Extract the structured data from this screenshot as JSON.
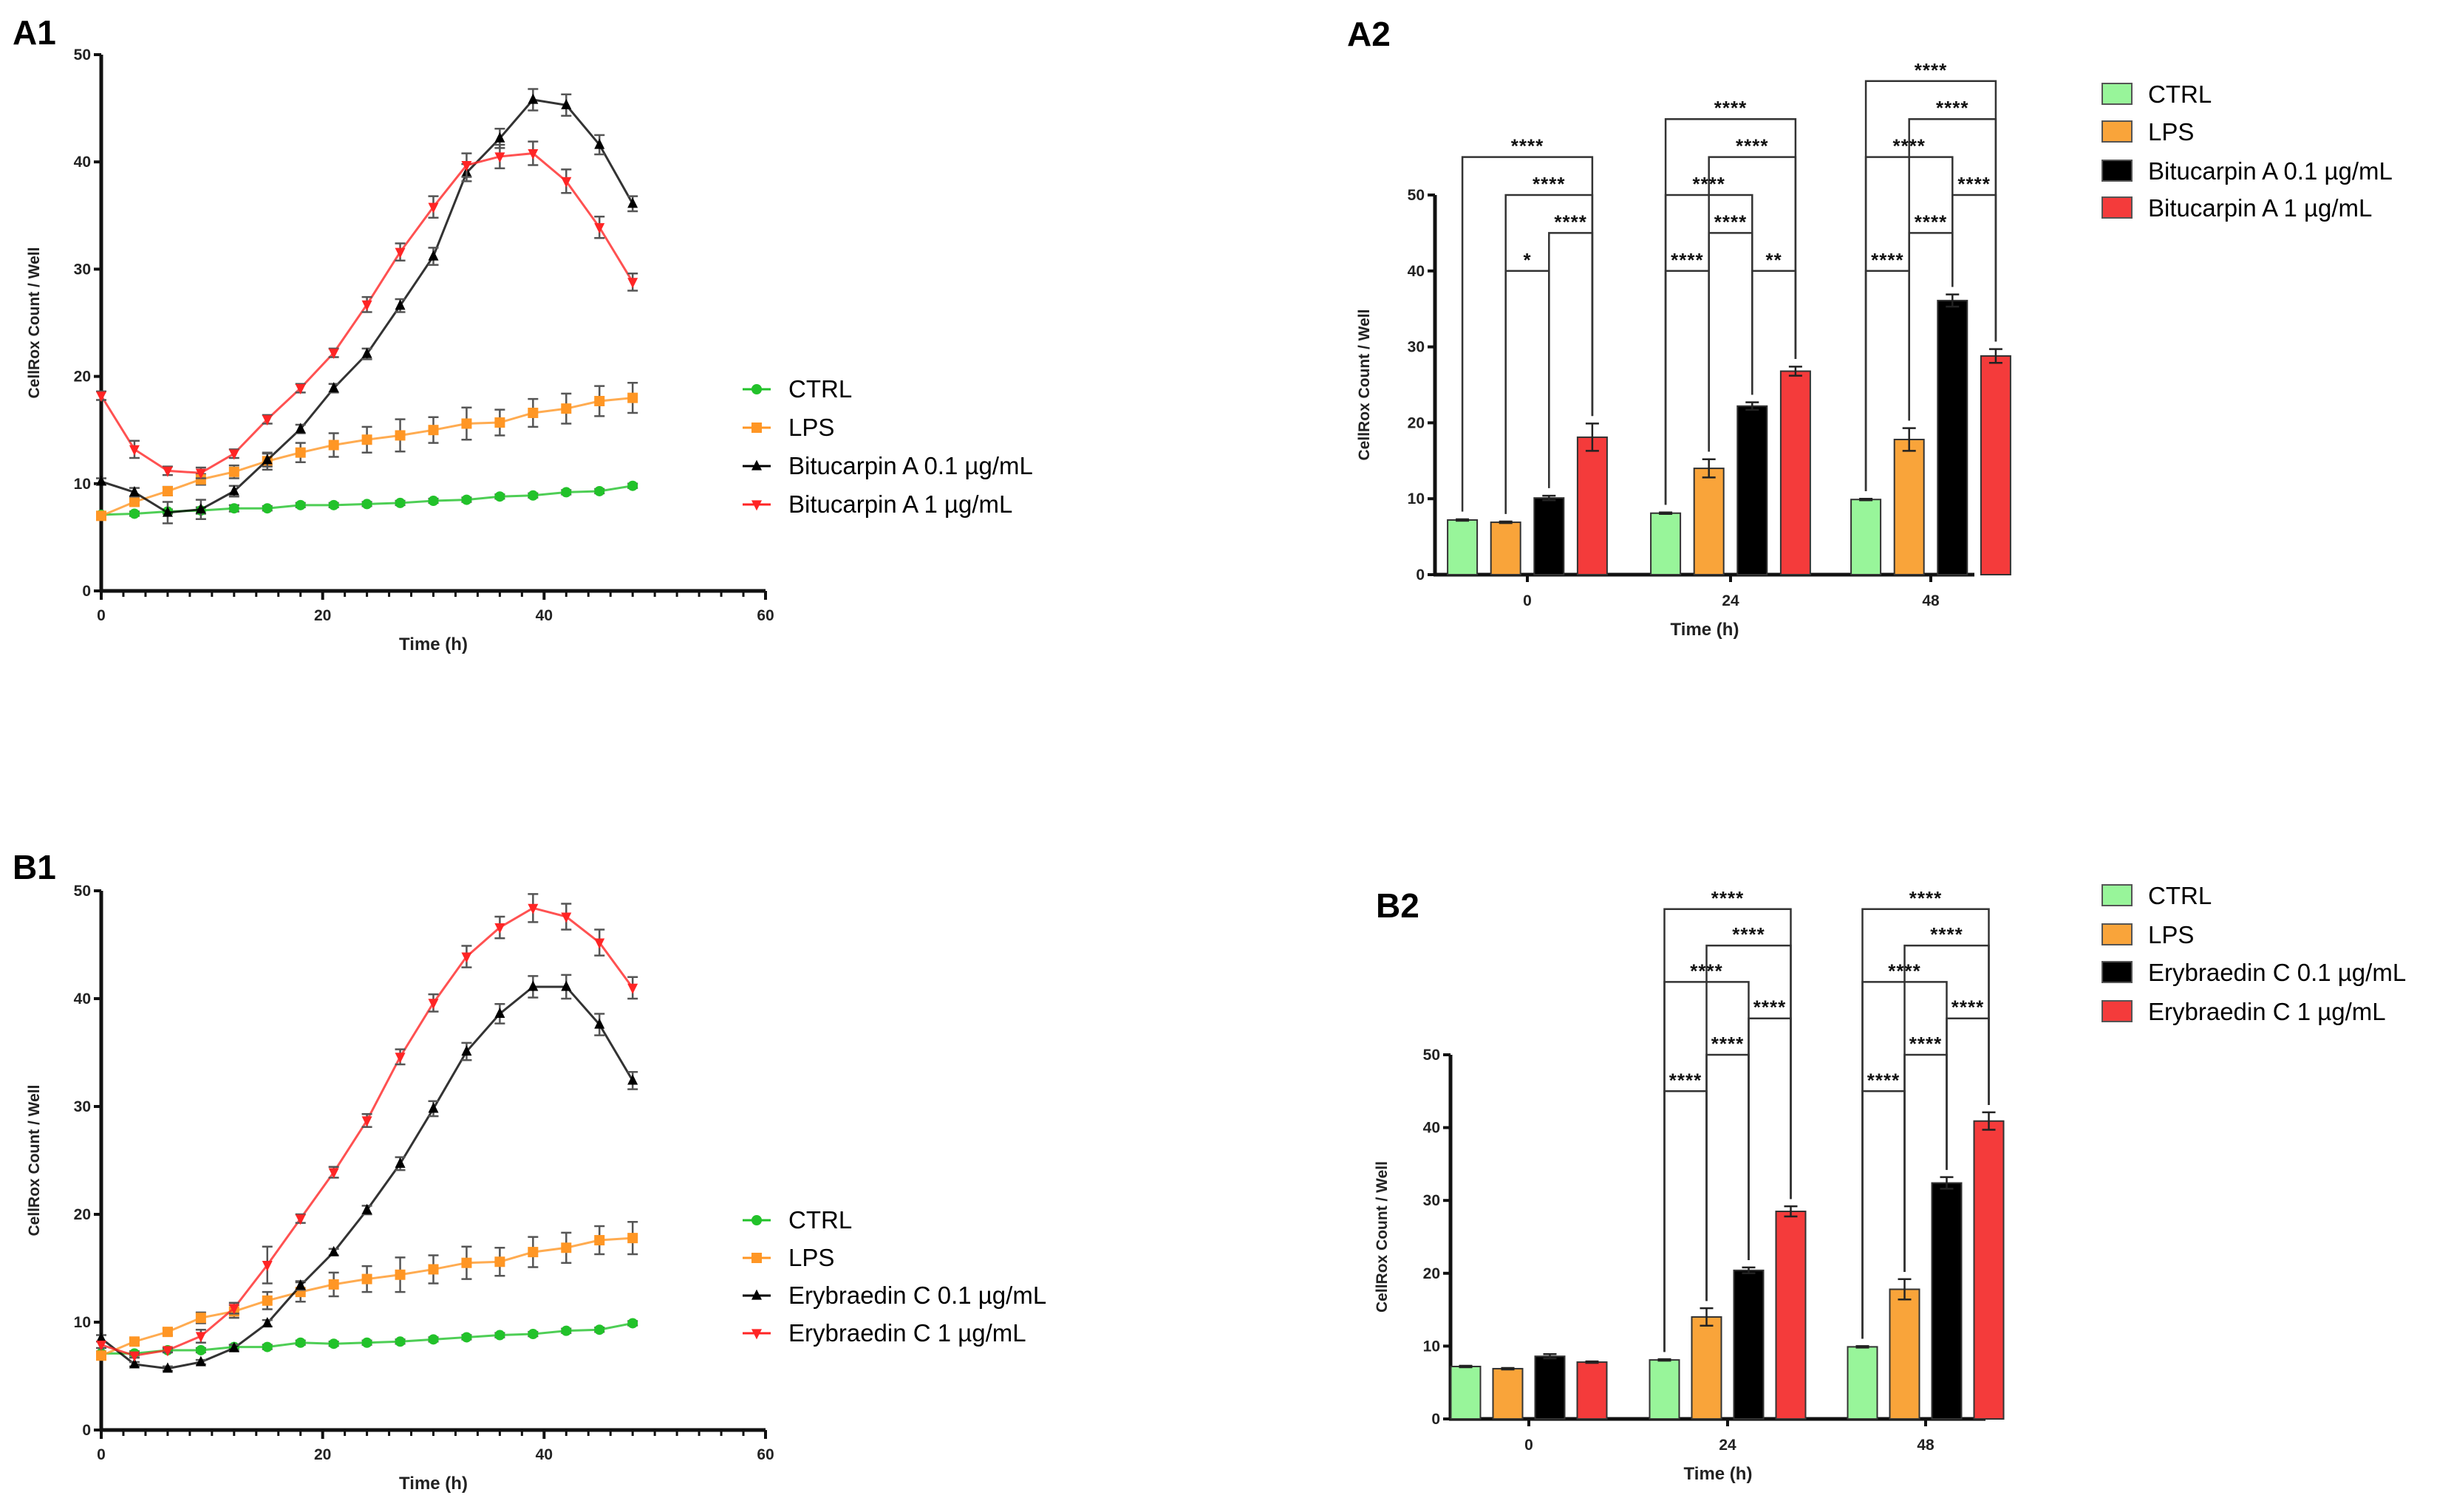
{
  "chart_data": [
    {
      "panel": "A1",
      "type": "line",
      "xlabel": "Time (h)",
      "ylabel": "CellRox Count / Well",
      "xlim": [
        0,
        60
      ],
      "ylim": [
        0,
        50
      ],
      "xticks": [
        0,
        20,
        40,
        60
      ],
      "yticks": [
        0,
        10,
        20,
        30,
        40,
        50
      ],
      "legend_position": "right",
      "x": [
        0,
        3,
        6,
        9,
        12,
        15,
        18,
        21,
        24,
        27,
        30,
        33,
        36,
        39,
        42,
        45,
        48
      ],
      "series": [
        {
          "name": "CTRL",
          "color": "#22c22a",
          "marker": "circle",
          "values": [
            7.1,
            7.2,
            7.4,
            7.5,
            7.7,
            7.7,
            8.0,
            8.0,
            8.1,
            8.2,
            8.4,
            8.5,
            8.8,
            8.9,
            9.2,
            9.3,
            9.8
          ],
          "errors": [
            0.2,
            0.2,
            0.2,
            0.3,
            0.3,
            0.2,
            0.2,
            0.2,
            0.2,
            0.2,
            0.2,
            0.2,
            0.2,
            0.2,
            0.2,
            0.2,
            0.2
          ]
        },
        {
          "name": "LPS",
          "color": "#ff9624",
          "marker": "square",
          "values": [
            7.0,
            8.3,
            9.3,
            10.4,
            11.1,
            12.1,
            12.9,
            13.6,
            14.1,
            14.5,
            15.0,
            15.6,
            15.7,
            16.6,
            17.0,
            17.7,
            18.0
          ],
          "errors": [
            0.2,
            0.3,
            0.4,
            0.5,
            0.6,
            0.8,
            0.9,
            1.1,
            1.2,
            1.5,
            1.2,
            1.5,
            1.2,
            1.3,
            1.4,
            1.4,
            1.4
          ]
        },
        {
          "name": "Bitucarpin A 0.1 µg/mL",
          "color": "#000000",
          "marker": "triangle-up",
          "values": [
            10.2,
            9.2,
            7.3,
            7.6,
            9.3,
            12.2,
            15.1,
            18.9,
            22.1,
            26.6,
            31.2,
            39.0,
            42.2,
            45.8,
            45.3,
            41.6,
            36.1
          ],
          "errors": [
            0.3,
            0.4,
            1.0,
            0.9,
            0.5,
            0.6,
            0.4,
            0.4,
            0.5,
            0.6,
            0.8,
            0.8,
            0.9,
            1.0,
            1.0,
            0.9,
            0.7
          ]
        },
        {
          "name": "Bitucarpin A 1 µg/mL",
          "color": "#ff2525",
          "marker": "triangle-down",
          "values": [
            18.2,
            13.2,
            11.2,
            11.0,
            12.8,
            16.0,
            18.9,
            22.2,
            26.7,
            31.6,
            35.8,
            39.7,
            40.5,
            40.8,
            38.2,
            33.9,
            28.8
          ],
          "errors": [
            0.4,
            0.8,
            0.4,
            0.5,
            0.4,
            0.4,
            0.4,
            0.4,
            0.7,
            0.8,
            1.0,
            1.1,
            1.1,
            1.1,
            1.1,
            1.0,
            0.8
          ]
        }
      ]
    },
    {
      "panel": "A2",
      "type": "bar",
      "xlabel": "Time (h)",
      "ylabel": "CellRox Count / Well",
      "ylim": [
        0,
        50
      ],
      "yticks": [
        0,
        10,
        20,
        30,
        40,
        50
      ],
      "legend_position": "top-right",
      "categories": [
        "0",
        "24",
        "48"
      ],
      "series": [
        {
          "name": "CTRL",
          "color": "#98f59a",
          "values": [
            7.2,
            8.1,
            9.9
          ],
          "errors": [
            0.1,
            0.1,
            0.1
          ]
        },
        {
          "name": "LPS",
          "color": "#f9a43a",
          "values": [
            6.9,
            14.0,
            17.8
          ],
          "errors": [
            0.1,
            1.2,
            1.5
          ]
        },
        {
          "name": "Bitucarpin A 0.1 µg/mL",
          "color": "#000000",
          "values": [
            10.1,
            22.2,
            36.1
          ],
          "errors": [
            0.3,
            0.5,
            0.8
          ]
        },
        {
          "name": "Bitucarpin A 1 µg/mL",
          "color": "#f43b3b",
          "values": [
            18.1,
            26.8,
            28.8
          ],
          "errors": [
            1.8,
            0.6,
            0.9
          ]
        }
      ],
      "significance": [
        {
          "group": 0,
          "from": 0,
          "to": 3,
          "level": 55,
          "label": "****"
        },
        {
          "group": 0,
          "from": 1,
          "to": 3,
          "level": 50,
          "label": "****"
        },
        {
          "group": 0,
          "from": 2,
          "to": 3,
          "level": 45,
          "label": "****"
        },
        {
          "group": 0,
          "from": 1,
          "to": 2,
          "level": 40,
          "label": "*"
        },
        {
          "group": 1,
          "from": 0,
          "to": 3,
          "level": 60,
          "label": "****"
        },
        {
          "group": 1,
          "from": 1,
          "to": 3,
          "level": 55,
          "label": "****"
        },
        {
          "group": 1,
          "from": 0,
          "to": 2,
          "level": 50,
          "label": "****"
        },
        {
          "group": 1,
          "from": 1,
          "to": 2,
          "level": 45,
          "label": "****"
        },
        {
          "group": 1,
          "from": 0,
          "to": 1,
          "level": 40,
          "label": "****"
        },
        {
          "group": 1,
          "from": 2,
          "to": 3,
          "level": 40,
          "label": "**"
        },
        {
          "group": 2,
          "from": 0,
          "to": 3,
          "level": 65,
          "label": "****"
        },
        {
          "group": 2,
          "from": 1,
          "to": 3,
          "level": 60,
          "label": "****"
        },
        {
          "group": 2,
          "from": 0,
          "to": 2,
          "level": 55,
          "label": "****"
        },
        {
          "group": 2,
          "from": 2,
          "to": 3,
          "level": 50,
          "label": "****"
        },
        {
          "group": 2,
          "from": 1,
          "to": 2,
          "level": 45,
          "label": "****"
        },
        {
          "group": 2,
          "from": 0,
          "to": 1,
          "level": 40,
          "label": "****"
        }
      ]
    },
    {
      "panel": "B1",
      "type": "line",
      "xlabel": "Time (h)",
      "ylabel": "CellRox Count / Well",
      "xlim": [
        0,
        60
      ],
      "ylim": [
        0,
        50
      ],
      "xticks": [
        0,
        20,
        40,
        60
      ],
      "yticks": [
        0,
        10,
        20,
        30,
        40,
        50
      ],
      "legend_position": "right",
      "x": [
        0,
        3,
        6,
        9,
        12,
        15,
        18,
        21,
        24,
        27,
        30,
        33,
        36,
        39,
        42,
        45,
        48
      ],
      "series": [
        {
          "name": "CTRL",
          "color": "#22c22a",
          "marker": "circle",
          "values": [
            7.1,
            7.1,
            7.4,
            7.4,
            7.7,
            7.7,
            8.1,
            8.0,
            8.1,
            8.2,
            8.4,
            8.6,
            8.8,
            8.9,
            9.2,
            9.3,
            9.9
          ],
          "errors": [
            0.2,
            0.2,
            0.2,
            0.2,
            0.2,
            0.2,
            0.2,
            0.2,
            0.2,
            0.2,
            0.2,
            0.2,
            0.2,
            0.2,
            0.2,
            0.2,
            0.2
          ]
        },
        {
          "name": "LPS",
          "color": "#ff9624",
          "marker": "square",
          "values": [
            6.9,
            8.2,
            9.1,
            10.4,
            11.0,
            12.0,
            12.8,
            13.5,
            14.0,
            14.4,
            14.9,
            15.5,
            15.6,
            16.5,
            16.9,
            17.6,
            17.8
          ],
          "errors": [
            0.2,
            0.3,
            0.3,
            0.5,
            0.6,
            0.8,
            0.9,
            1.1,
            1.2,
            1.6,
            1.3,
            1.5,
            1.3,
            1.4,
            1.4,
            1.3,
            1.5
          ]
        },
        {
          "name": "Erybraedin C 0.1 µg/mL",
          "color": "#000000",
          "marker": "triangle-up",
          "values": [
            8.5,
            6.1,
            5.7,
            6.3,
            7.6,
            9.9,
            13.4,
            16.5,
            20.4,
            24.7,
            29.8,
            35.1,
            38.6,
            41.1,
            41.1,
            37.6,
            32.4
          ],
          "errors": [
            0.3,
            0.2,
            0.2,
            0.2,
            0.3,
            0.3,
            0.4,
            0.3,
            0.4,
            0.6,
            0.7,
            0.8,
            0.9,
            1.0,
            1.1,
            1.0,
            0.8
          ]
        },
        {
          "name": "Erybraedin C 1 µg/mL",
          "color": "#ff2525",
          "marker": "triangle-down",
          "values": [
            7.9,
            6.9,
            7.4,
            8.7,
            11.3,
            15.3,
            19.6,
            23.9,
            28.7,
            34.6,
            39.6,
            43.9,
            46.6,
            48.4,
            47.6,
            45.2,
            41.0
          ],
          "errors": [
            0.3,
            0.2,
            0.2,
            0.6,
            0.5,
            1.7,
            0.4,
            0.5,
            0.6,
            0.7,
            0.8,
            1.0,
            1.0,
            1.3,
            1.2,
            1.2,
            1.0
          ]
        }
      ]
    },
    {
      "panel": "B2",
      "type": "bar",
      "xlabel": "Time (h)",
      "ylabel": "CellRox Count / Well",
      "ylim": [
        0,
        50
      ],
      "yticks": [
        0,
        10,
        20,
        30,
        40,
        50
      ],
      "legend_position": "top-right",
      "categories": [
        "0",
        "24",
        "48"
      ],
      "series": [
        {
          "name": "CTRL",
          "color": "#98f59a",
          "values": [
            7.2,
            8.1,
            9.9
          ],
          "errors": [
            0.1,
            0.1,
            0.1
          ]
        },
        {
          "name": "LPS",
          "color": "#f9a43a",
          "values": [
            6.9,
            14.0,
            17.8
          ],
          "errors": [
            0.1,
            1.2,
            1.4
          ]
        },
        {
          "name": "Erybraedin C 0.1 µg/mL",
          "color": "#000000",
          "values": [
            8.6,
            20.4,
            32.4
          ],
          "errors": [
            0.3,
            0.4,
            0.8
          ]
        },
        {
          "name": "Erybraedin C 1 µg/mL",
          "color": "#f43b3b",
          "values": [
            7.8,
            28.5,
            40.9
          ],
          "errors": [
            0.1,
            0.7,
            1.2
          ]
        }
      ],
      "significance": [
        {
          "group": 1,
          "from": 0,
          "to": 3,
          "level": 70,
          "label": "****"
        },
        {
          "group": 1,
          "from": 1,
          "to": 3,
          "level": 65,
          "label": "****"
        },
        {
          "group": 1,
          "from": 0,
          "to": 2,
          "level": 60,
          "label": "****"
        },
        {
          "group": 1,
          "from": 2,
          "to": 3,
          "level": 55,
          "label": "****"
        },
        {
          "group": 1,
          "from": 1,
          "to": 2,
          "level": 50,
          "label": "****"
        },
        {
          "group": 1,
          "from": 0,
          "to": 1,
          "level": 45,
          "label": "****"
        },
        {
          "group": 2,
          "from": 0,
          "to": 3,
          "level": 70,
          "label": "****"
        },
        {
          "group": 2,
          "from": 1,
          "to": 3,
          "level": 65,
          "label": "****"
        },
        {
          "group": 2,
          "from": 0,
          "to": 2,
          "level": 60,
          "label": "****"
        },
        {
          "group": 2,
          "from": 2,
          "to": 3,
          "level": 55,
          "label": "****"
        },
        {
          "group": 2,
          "from": 1,
          "to": 2,
          "level": 50,
          "label": "****"
        },
        {
          "group": 2,
          "from": 0,
          "to": 1,
          "level": 45,
          "label": "****"
        }
      ]
    }
  ]
}
